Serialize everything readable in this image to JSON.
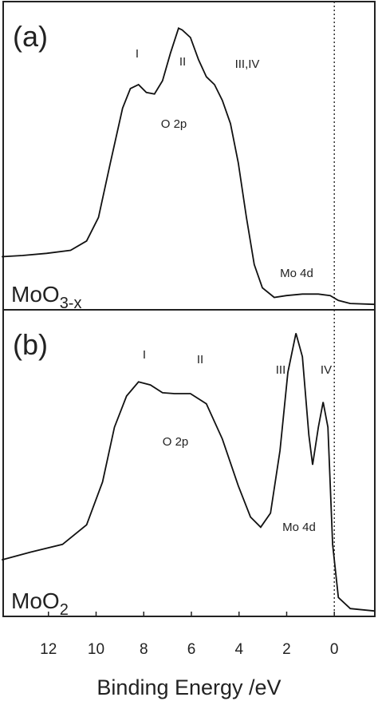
{
  "chart_data": [
    {
      "type": "line",
      "panel_label": "(a)",
      "sample": {
        "base": "MoO",
        "sub": "3-x"
      },
      "annotations": [
        "I",
        "II",
        "III,IV",
        "O 2p",
        "Mo 4d"
      ],
      "xlim": [
        13.9,
        -1.7
      ],
      "ylim": [
        0,
        100
      ],
      "vline": 0,
      "series": [
        {
          "color": "#111111",
          "x": [
            13.96,
            13.09,
            12.08,
            11.07,
            10.4,
            9.9,
            9.4,
            8.89,
            8.56,
            8.22,
            7.89,
            7.55,
            7.21,
            6.88,
            6.54,
            6.38,
            6.04,
            5.7,
            5.37,
            5.03,
            4.7,
            4.36,
            4.03,
            3.69,
            3.36,
            3.02,
            2.52,
            2.01,
            1.34,
            0.67,
            0.17,
            -0.17,
            -0.67,
            -1.68
          ],
          "values": [
            17.6,
            18,
            18.7,
            19.7,
            22.8,
            30.6,
            48.7,
            66.8,
            73.3,
            74.6,
            72,
            71.5,
            75.9,
            85,
            93.3,
            92.7,
            90.2,
            82.9,
            77.2,
            74.6,
            69.4,
            61.7,
            48.7,
            30.6,
            15,
            7.3,
            4.1,
            4.7,
            5.2,
            5.2,
            4.7,
            3.1,
            2.1,
            1.8
          ]
        }
      ]
    },
    {
      "type": "line",
      "panel_label": "(b)",
      "sample": {
        "base": "MoO",
        "sub": "2"
      },
      "annotations": [
        "I",
        "II",
        "III",
        "IV",
        "O 2p",
        "Mo 4d"
      ],
      "xlim": [
        13.9,
        -1.7
      ],
      "ylim": [
        0,
        100
      ],
      "vline": 0,
      "xlabel": "Binding Energy /eV",
      "xticks": [
        12,
        10,
        8,
        6,
        4,
        2,
        0
      ],
      "series": [
        {
          "color": "#111111",
          "x": [
            13.96,
            12.75,
            11.41,
            10.4,
            9.73,
            9.23,
            8.72,
            8.22,
            7.72,
            7.21,
            6.71,
            6.04,
            5.37,
            4.7,
            4.03,
            3.52,
            3.09,
            2.68,
            2.28,
            1.95,
            1.61,
            1.34,
            1.07,
            0.91,
            0.67,
            0.47,
            0.27,
            0.07,
            -0.17,
            -0.67,
            -1.68
          ],
          "values": [
            18.8,
            21.4,
            24,
            30.5,
            44.8,
            63,
            73.4,
            78.1,
            77.1,
            74.5,
            74.2,
            74.2,
            70.8,
            59.1,
            43.5,
            33.1,
            29.7,
            34.4,
            55.2,
            81.3,
            94.3,
            86.5,
            60.4,
            50.5,
            63,
            71.4,
            63,
            24,
            6.3,
            2.6,
            1.8
          ]
        }
      ]
    }
  ]
}
